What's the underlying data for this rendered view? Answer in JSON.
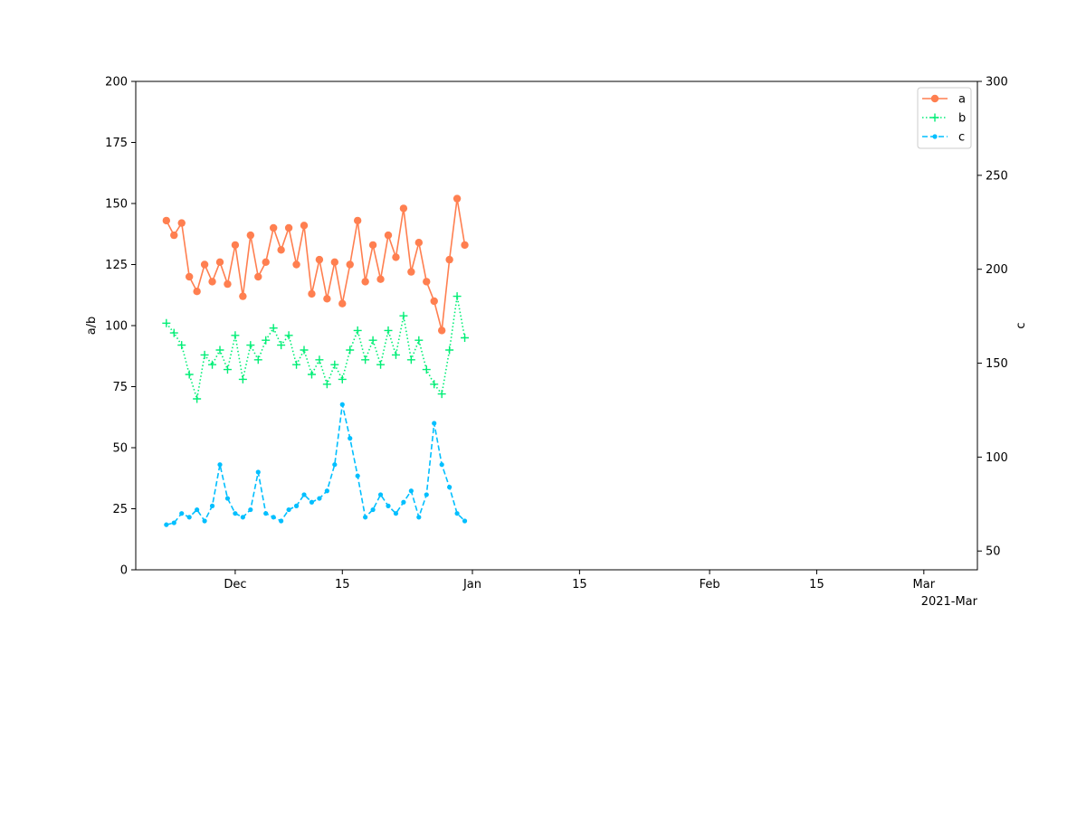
{
  "chart_data": {
    "type": "line",
    "x_axis": {
      "type": "date",
      "range": [
        "2020-11-18",
        "2021-03-08"
      ],
      "ticks": [
        {
          "date": "2020-12-01",
          "label": "Dec"
        },
        {
          "date": "2020-12-15",
          "label": "15"
        },
        {
          "date": "2021-01-01",
          "label": "Jan"
        },
        {
          "date": "2021-01-15",
          "label": "15"
        },
        {
          "date": "2021-02-01",
          "label": "Feb"
        },
        {
          "date": "2021-02-15",
          "label": "15"
        },
        {
          "date": "2021-03-01",
          "label": "Mar"
        }
      ],
      "offset_label": "2021-Mar"
    },
    "y_left": {
      "label": "a/b",
      "range": [
        0,
        200
      ],
      "ticks": [
        {
          "value": 0,
          "label": "0"
        },
        {
          "value": 25,
          "label": "25"
        },
        {
          "value": 50,
          "label": "50"
        },
        {
          "value": 75,
          "label": "75"
        },
        {
          "value": 100,
          "label": "100"
        },
        {
          "value": 125,
          "label": "125"
        },
        {
          "value": 150,
          "label": "150"
        },
        {
          "value": 175,
          "label": "175"
        },
        {
          "value": 200,
          "label": "200"
        }
      ]
    },
    "y_right": {
      "label": "c",
      "range": [
        40,
        300
      ],
      "ticks": [
        {
          "value": 50,
          "label": "50"
        },
        {
          "value": 100,
          "label": "100"
        },
        {
          "value": 150,
          "label": "150"
        },
        {
          "value": 200,
          "label": "200"
        },
        {
          "value": 250,
          "label": "250"
        },
        {
          "value": 300,
          "label": "300"
        }
      ]
    },
    "grid": false,
    "legend_position": "top-right",
    "series": [
      {
        "name": "a",
        "axis": "left",
        "color": "#ff7f50",
        "line_style": "solid",
        "marker": "circle",
        "points": [
          [
            "2020-11-22",
            143
          ],
          [
            "2020-11-23",
            137
          ],
          [
            "2020-11-24",
            142
          ],
          [
            "2020-11-25",
            120
          ],
          [
            "2020-11-26",
            114
          ],
          [
            "2020-11-27",
            125
          ],
          [
            "2020-11-28",
            118
          ],
          [
            "2020-11-29",
            126
          ],
          [
            "2020-11-30",
            117
          ],
          [
            "2020-12-01",
            133
          ],
          [
            "2020-12-02",
            112
          ],
          [
            "2020-12-03",
            137
          ],
          [
            "2020-12-04",
            120
          ],
          [
            "2020-12-05",
            126
          ],
          [
            "2020-12-06",
            140
          ],
          [
            "2020-12-07",
            131
          ],
          [
            "2020-12-08",
            140
          ],
          [
            "2020-12-09",
            125
          ],
          [
            "2020-12-10",
            141
          ],
          [
            "2020-12-11",
            113
          ],
          [
            "2020-12-12",
            127
          ],
          [
            "2020-12-13",
            111
          ],
          [
            "2020-12-14",
            126
          ],
          [
            "2020-12-15",
            109
          ],
          [
            "2020-12-16",
            125
          ],
          [
            "2020-12-17",
            143
          ],
          [
            "2020-12-18",
            118
          ],
          [
            "2020-12-19",
            133
          ],
          [
            "2020-12-20",
            119
          ],
          [
            "2020-12-21",
            137
          ],
          [
            "2020-12-22",
            128
          ],
          [
            "2020-12-23",
            148
          ],
          [
            "2020-12-24",
            122
          ],
          [
            "2020-12-25",
            134
          ],
          [
            "2020-12-26",
            118
          ],
          [
            "2020-12-27",
            110
          ],
          [
            "2020-12-28",
            98
          ],
          [
            "2020-12-29",
            127
          ],
          [
            "2020-12-30",
            152
          ],
          [
            "2020-12-31",
            133
          ]
        ]
      },
      {
        "name": "b",
        "axis": "left",
        "color": "#00ee76",
        "line_style": "dotted",
        "marker": "plus",
        "points": [
          [
            "2020-11-22",
            101
          ],
          [
            "2020-11-23",
            97
          ],
          [
            "2020-11-24",
            92
          ],
          [
            "2020-11-25",
            80
          ],
          [
            "2020-11-26",
            70
          ],
          [
            "2020-11-27",
            88
          ],
          [
            "2020-11-28",
            84
          ],
          [
            "2020-11-29",
            90
          ],
          [
            "2020-11-30",
            82
          ],
          [
            "2020-12-01",
            96
          ],
          [
            "2020-12-02",
            78
          ],
          [
            "2020-12-03",
            92
          ],
          [
            "2020-12-04",
            86
          ],
          [
            "2020-12-05",
            94
          ],
          [
            "2020-12-06",
            99
          ],
          [
            "2020-12-07",
            92
          ],
          [
            "2020-12-08",
            96
          ],
          [
            "2020-12-09",
            84
          ],
          [
            "2020-12-10",
            90
          ],
          [
            "2020-12-11",
            80
          ],
          [
            "2020-12-12",
            86
          ],
          [
            "2020-12-13",
            76
          ],
          [
            "2020-12-14",
            84
          ],
          [
            "2020-12-15",
            78
          ],
          [
            "2020-12-16",
            90
          ],
          [
            "2020-12-17",
            98
          ],
          [
            "2020-12-18",
            86
          ],
          [
            "2020-12-19",
            94
          ],
          [
            "2020-12-20",
            84
          ],
          [
            "2020-12-21",
            98
          ],
          [
            "2020-12-22",
            88
          ],
          [
            "2020-12-23",
            104
          ],
          [
            "2020-12-24",
            86
          ],
          [
            "2020-12-25",
            94
          ],
          [
            "2020-12-26",
            82
          ],
          [
            "2020-12-27",
            76
          ],
          [
            "2020-12-28",
            72
          ],
          [
            "2020-12-29",
            90
          ],
          [
            "2020-12-30",
            112
          ],
          [
            "2020-12-31",
            95
          ]
        ]
      },
      {
        "name": "c",
        "axis": "right",
        "color": "#00bfff",
        "line_style": "dashed",
        "marker": "point",
        "points": [
          [
            "2020-11-22",
            64
          ],
          [
            "2020-11-23",
            65
          ],
          [
            "2020-11-24",
            70
          ],
          [
            "2020-11-25",
            68
          ],
          [
            "2020-11-26",
            72
          ],
          [
            "2020-11-27",
            66
          ],
          [
            "2020-11-28",
            74
          ],
          [
            "2020-11-29",
            96
          ],
          [
            "2020-11-30",
            78
          ],
          [
            "2020-12-01",
            70
          ],
          [
            "2020-12-02",
            68
          ],
          [
            "2020-12-03",
            72
          ],
          [
            "2020-12-04",
            92
          ],
          [
            "2020-12-05",
            70
          ],
          [
            "2020-12-06",
            68
          ],
          [
            "2020-12-07",
            66
          ],
          [
            "2020-12-08",
            72
          ],
          [
            "2020-12-09",
            74
          ],
          [
            "2020-12-10",
            80
          ],
          [
            "2020-12-11",
            76
          ],
          [
            "2020-12-12",
            78
          ],
          [
            "2020-12-13",
            82
          ],
          [
            "2020-12-14",
            96
          ],
          [
            "2020-12-15",
            128
          ],
          [
            "2020-12-16",
            110
          ],
          [
            "2020-12-17",
            90
          ],
          [
            "2020-12-18",
            68
          ],
          [
            "2020-12-19",
            72
          ],
          [
            "2020-12-20",
            80
          ],
          [
            "2020-12-21",
            74
          ],
          [
            "2020-12-22",
            70
          ],
          [
            "2020-12-23",
            76
          ],
          [
            "2020-12-24",
            82
          ],
          [
            "2020-12-25",
            68
          ],
          [
            "2020-12-26",
            80
          ],
          [
            "2020-12-27",
            118
          ],
          [
            "2020-12-28",
            96
          ],
          [
            "2020-12-29",
            84
          ],
          [
            "2020-12-30",
            70
          ],
          [
            "2020-12-31",
            66
          ]
        ]
      }
    ]
  },
  "legend": {
    "items": [
      {
        "label": "a"
      },
      {
        "label": "b"
      },
      {
        "label": "c"
      }
    ]
  }
}
